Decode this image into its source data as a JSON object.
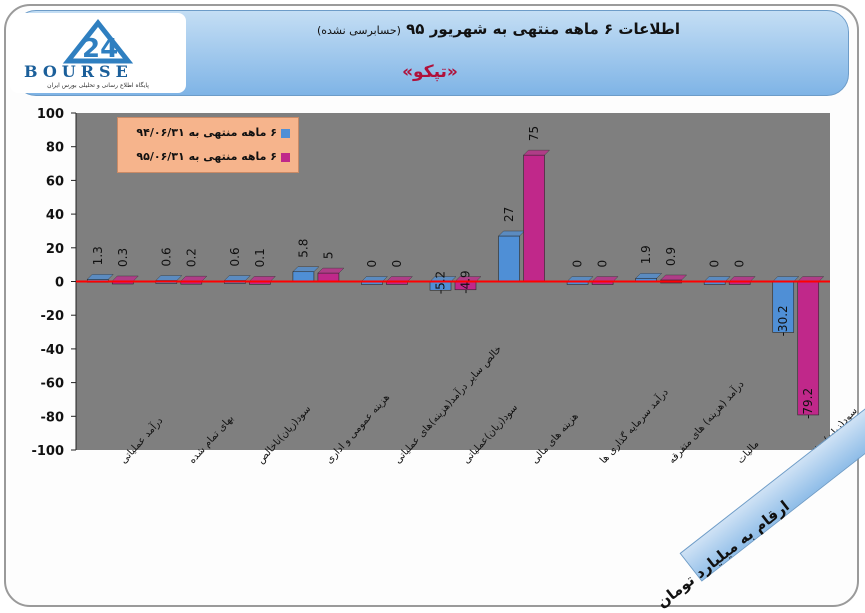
{
  "header": {
    "title": "اطلاعات ۶ ماهه منتهی به شهریور ۹۵",
    "title_note": "(حسابرسی نشده)",
    "subtitle": "«تپکو»"
  },
  "logo": {
    "text": "BOURSE",
    "tagline": "پایگاه اطلاع رسانی و تحلیلی بورس ایران"
  },
  "units_label": "ارقام به میلیارد تومان",
  "colors": {
    "series1": "#4f8fd6",
    "series2": "#c0288a",
    "plot_bg": "#7f7f7f",
    "zero_line": "#ff0000"
  },
  "chart_data": {
    "type": "bar",
    "categories": [
      "درآمد عملیاتی",
      "بهای تمام شده",
      "سود(زیان)ناخالص",
      "هزینه عمومی و اداری",
      "خالص سایر درآمد(هزینه)های عملیاتی",
      "سود(زیان)عملیاتی",
      "هزینه های مالی",
      "درآمد سرمایه گذاری ها",
      "درآمد (هزینه) های متفرقه",
      "مالیات",
      "سود(زیان) خالص"
    ],
    "series": [
      {
        "name": "۶ ماهه منتهی به ۹۴/۰۶/۳۱",
        "values": [
          1.3,
          0.6,
          0.6,
          5.8,
          0,
          -5.2,
          27,
          0,
          1.9,
          0,
          -30.2
        ]
      },
      {
        "name": "۶ ماهه منتهی به ۹۵/۰۶/۳۱",
        "values": [
          0.3,
          0.2,
          0.1,
          5,
          0,
          -4.9,
          75,
          0,
          0.9,
          0,
          -79.2
        ]
      }
    ],
    "ylim": [
      -100,
      100
    ],
    "yticks": [
      100,
      80,
      60,
      40,
      20,
      0,
      -20,
      -40,
      -60,
      -80,
      -100
    ],
    "grid": false,
    "legend_position": "top-left"
  }
}
